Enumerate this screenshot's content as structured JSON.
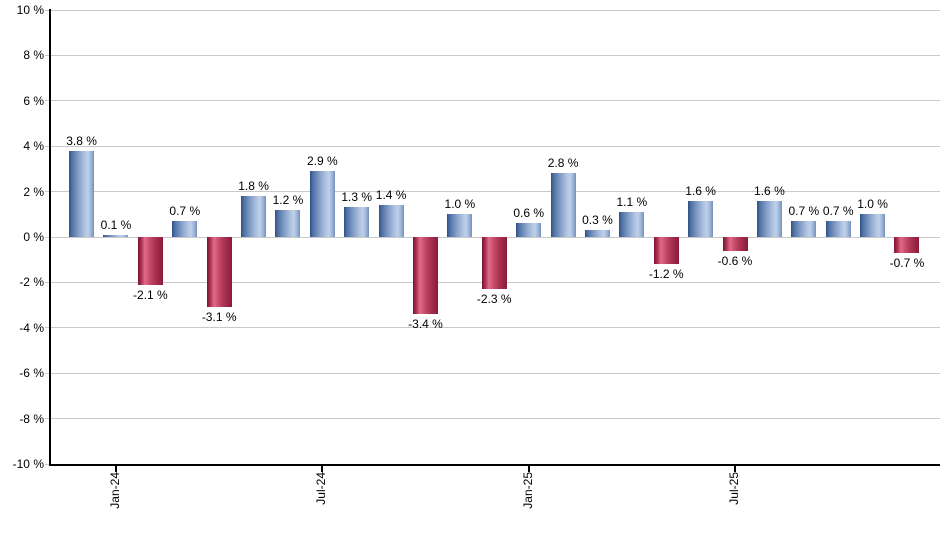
{
  "chart_data": {
    "type": "bar",
    "title": "",
    "xlabel": "",
    "ylabel": "",
    "ylim": [
      -10,
      10
    ],
    "ytick_step": 2,
    "grid": true,
    "legend_position": "none",
    "y_tick_labels": [
      "10 %",
      "8 %",
      "6 %",
      "4 %",
      "2 %",
      "0 %",
      "-2 %",
      "-4 %",
      "-6 %",
      "-8 %",
      "-10 %"
    ],
    "y_tick_values": [
      10,
      8,
      6,
      4,
      2,
      0,
      -2,
      -4,
      -6,
      -8,
      -10
    ],
    "values": [
      3.8,
      0.1,
      -2.1,
      0.7,
      -3.1,
      1.8,
      1.2,
      2.9,
      1.3,
      1.4,
      -3.4,
      1.0,
      -2.3,
      0.6,
      2.8,
      0.3,
      1.1,
      -1.2,
      1.6,
      -0.6,
      1.6,
      0.7,
      0.7,
      1.0,
      -0.7
    ],
    "bar_labels": [
      "3.8 %",
      "0.1 %",
      "-2.1 %",
      "0.7 %",
      "-3.1 %",
      "1.8 %",
      "1.2 %",
      "2.9 %",
      "1.3 %",
      "1.4 %",
      "-3.4 %",
      "1.0 %",
      "-2.3 %",
      "0.6 %",
      "2.8 %",
      "0.3 %",
      "1.1 %",
      "-1.2 %",
      "1.6 %",
      "-0.6 %",
      "1.6 %",
      "0.7 %",
      "0.7 %",
      "1.0 %",
      "-0.7 %"
    ],
    "x_ticks": [
      {
        "index": 1,
        "label": "Jan-24"
      },
      {
        "index": 7,
        "label": "Jul-24"
      },
      {
        "index": 13,
        "label": "Jan-25"
      },
      {
        "index": 19,
        "label": "Jul-25"
      }
    ],
    "colors": {
      "positive_bar": "#7f9cc6",
      "positive_bar_dark": "#2f4e80",
      "positive_bar_light": "#bed0ea",
      "negative_bar": "#c94e6c",
      "negative_bar_dark": "#7c1230",
      "negative_bar_light": "#e26b88",
      "gridline": "#c9c9c9",
      "axis": "#000000",
      "label_text": "#000000",
      "background": "#ffffff"
    }
  }
}
